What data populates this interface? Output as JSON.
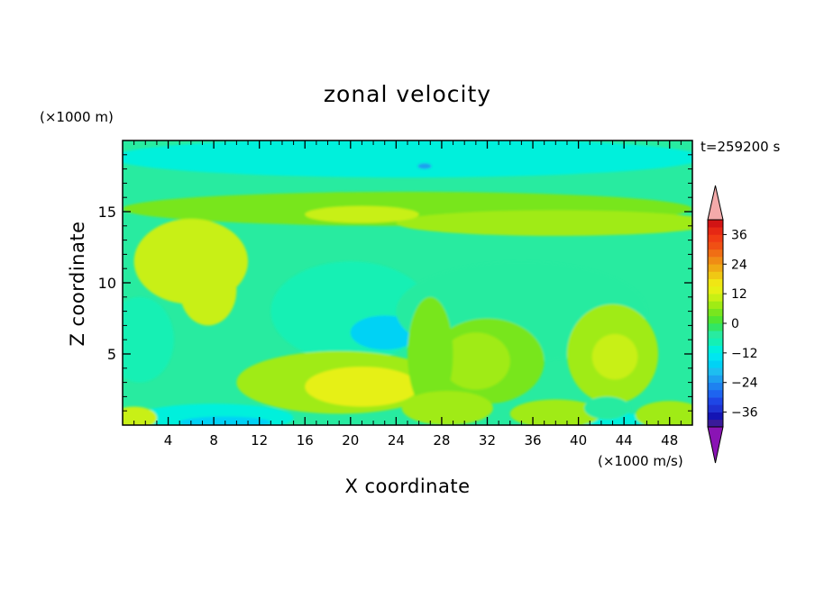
{
  "chart_data": {
    "type": "heatmap",
    "title": "zonal velocity",
    "xlabel": "X coordinate",
    "ylabel": "Z coordinate",
    "x_unit": "(×1000 m/s)",
    "y_unit": "(×1000 m)",
    "time_label": "t=259200 s",
    "xlim": [
      0,
      50
    ],
    "ylim": [
      0,
      20
    ],
    "x_ticks": [
      4,
      8,
      12,
      16,
      20,
      24,
      28,
      32,
      36,
      40,
      44,
      48
    ],
    "y_ticks": [
      5,
      10,
      15
    ],
    "colorbar": {
      "ticks": [
        36,
        24,
        12,
        0,
        -12,
        -24,
        -36
      ],
      "levels": [
        -42,
        -39,
        -36,
        -33,
        -30,
        -27,
        -24,
        -21,
        -18,
        -15,
        -12,
        -9,
        -6,
        -3,
        0,
        3,
        6,
        9,
        12,
        15,
        18,
        21,
        24,
        27,
        30,
        33,
        36,
        39,
        42
      ],
      "colors": [
        "#3a1a9a",
        "#1414b4",
        "#1e32d2",
        "#1e46e6",
        "#1e64f0",
        "#1e82f0",
        "#1ea0f0",
        "#1ebef0",
        "#00d2f5",
        "#00e6f0",
        "#00f0dc",
        "#14f0b4",
        "#28eba0",
        "#32e664",
        "#50e632",
        "#78e61e",
        "#a0eb14",
        "#c8f014",
        "#e6f014",
        "#f0e614",
        "#f0c814",
        "#f0aa14",
        "#f08c14",
        "#f06e14",
        "#f05014",
        "#f03c14",
        "#e62814",
        "#d21414"
      ],
      "under_color": "#8a14b4",
      "over_color": "#f4aaaa"
    },
    "field_regions": [
      {
        "x": 25,
        "y": 18.8,
        "rx": 26,
        "ry": 1.4,
        "value": -10
      },
      {
        "x": 25,
        "y": 15.2,
        "rx": 25,
        "ry": 1.2,
        "value": 3
      },
      {
        "x": 38,
        "y": 14.2,
        "rx": 14,
        "ry": 0.9,
        "value": 6
      },
      {
        "x": 21,
        "y": 14.8,
        "rx": 5,
        "ry": 0.6,
        "value": 9
      },
      {
        "x": 6,
        "y": 11.5,
        "rx": 5,
        "ry": 3,
        "value": 9
      },
      {
        "x": 7.5,
        "y": 9.5,
        "rx": 2.5,
        "ry": 2.5,
        "value": 10
      },
      {
        "x": 20,
        "y": 8,
        "rx": 7,
        "ry": 3.5,
        "value": -9
      },
      {
        "x": 23,
        "y": 6.5,
        "rx": 3,
        "ry": 1.2,
        "value": -16
      },
      {
        "x": 35,
        "y": 8,
        "rx": 11,
        "ry": 3.5,
        "value": -5
      },
      {
        "x": 1.5,
        "y": 6,
        "rx": 3,
        "ry": 3,
        "value": -9
      },
      {
        "x": 19,
        "y": 3,
        "rx": 9,
        "ry": 2.2,
        "value": 6
      },
      {
        "x": 21,
        "y": 2.7,
        "rx": 5,
        "ry": 1.4,
        "value": 12
      },
      {
        "x": 32,
        "y": 4.5,
        "rx": 5,
        "ry": 3,
        "value": 3
      },
      {
        "x": 31,
        "y": 4.5,
        "rx": 3,
        "ry": 2,
        "value": 6
      },
      {
        "x": 43,
        "y": 5,
        "rx": 4,
        "ry": 3.5,
        "value": 6
      },
      {
        "x": 43.2,
        "y": 4.8,
        "rx": 2,
        "ry": 1.6,
        "value": 10
      },
      {
        "x": 27,
        "y": 5,
        "rx": 2,
        "ry": 4,
        "value": 4
      },
      {
        "x": 8,
        "y": 0.5,
        "rx": 7,
        "ry": 1,
        "value": -10
      },
      {
        "x": 9,
        "y": 0.2,
        "rx": 4,
        "ry": 0.4,
        "value": -16
      },
      {
        "x": 43,
        "y": 0.3,
        "rx": 3,
        "ry": 0.6,
        "value": -10
      },
      {
        "x": 1,
        "y": 0.5,
        "rx": 2,
        "ry": 0.8,
        "value": 10
      },
      {
        "x": 28.5,
        "y": 1.2,
        "rx": 4,
        "ry": 1.2,
        "value": 6
      },
      {
        "x": 38,
        "y": 0.8,
        "rx": 4,
        "ry": 1,
        "value": 6
      },
      {
        "x": 48,
        "y": 0.7,
        "rx": 3,
        "ry": 1,
        "value": 6
      },
      {
        "x": 42.5,
        "y": 1.2,
        "rx": 2,
        "ry": 0.8,
        "value": -6
      },
      {
        "x": 26.5,
        "y": 18.2,
        "rx": 0.6,
        "ry": 0.2,
        "value": -22
      }
    ]
  }
}
